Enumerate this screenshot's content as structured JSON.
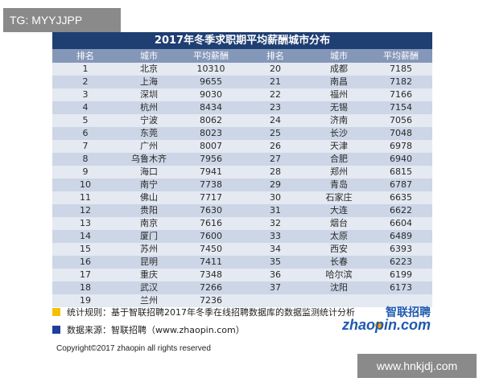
{
  "tg_badge": "TG: MYYJJPP",
  "title": "2017年冬季求职期平均薪酬城市分布",
  "headers": [
    "排名",
    "城市",
    "平均薪酬",
    "排名",
    "城市",
    "平均薪酬"
  ],
  "rows": [
    [
      "1",
      "北京",
      "10310",
      "20",
      "成都",
      "7185"
    ],
    [
      "2",
      "上海",
      "9655",
      "21",
      "南昌",
      "7182"
    ],
    [
      "3",
      "深圳",
      "9030",
      "22",
      "福州",
      "7166"
    ],
    [
      "4",
      "杭州",
      "8434",
      "23",
      "无锡",
      "7154"
    ],
    [
      "5",
      "宁波",
      "8062",
      "24",
      "济南",
      "7056"
    ],
    [
      "6",
      "东莞",
      "8023",
      "25",
      "长沙",
      "7048"
    ],
    [
      "7",
      "广州",
      "8007",
      "26",
      "天津",
      "6978"
    ],
    [
      "8",
      "乌鲁木齐",
      "7956",
      "27",
      "合肥",
      "6940"
    ],
    [
      "9",
      "海口",
      "7941",
      "28",
      "郑州",
      "6815"
    ],
    [
      "10",
      "南宁",
      "7738",
      "29",
      "青岛",
      "6787"
    ],
    [
      "11",
      "佛山",
      "7717",
      "30",
      "石家庄",
      "6635"
    ],
    [
      "12",
      "贵阳",
      "7630",
      "31",
      "大连",
      "6622"
    ],
    [
      "13",
      "南京",
      "7616",
      "32",
      "烟台",
      "6604"
    ],
    [
      "14",
      "厦门",
      "7600",
      "33",
      "太原",
      "6489"
    ],
    [
      "15",
      "苏州",
      "7450",
      "34",
      "西安",
      "6393"
    ],
    [
      "16",
      "昆明",
      "7411",
      "35",
      "长春",
      "6223"
    ],
    [
      "17",
      "重庆",
      "7348",
      "36",
      "哈尔滨",
      "6199"
    ],
    [
      "18",
      "武汉",
      "7266",
      "37",
      "沈阳",
      "6173"
    ],
    [
      "19",
      "兰州",
      "7236",
      "",
      "",
      ""
    ]
  ],
  "notes": {
    "rule": "统计规则：基于智联招聘2017年冬季在线招聘数据库的数据监测统计分析",
    "source": "数据来源：智联招聘（www.zhaopin.com）"
  },
  "logo": {
    "cn": "智联招聘",
    "en": "zhaopin.com"
  },
  "copyright": "Copyright©2017 zhaopin all rights reserved",
  "site_badge": "www.hnkjdj.com",
  "colors": {
    "title_bg": "#1f3e72",
    "header_bg": "#8597b8",
    "row_light": "#e4e9f2",
    "row_dark": "#ccd6e6",
    "bullet_yellow": "#f2c200",
    "bullet_blue": "#1f3e9a"
  }
}
